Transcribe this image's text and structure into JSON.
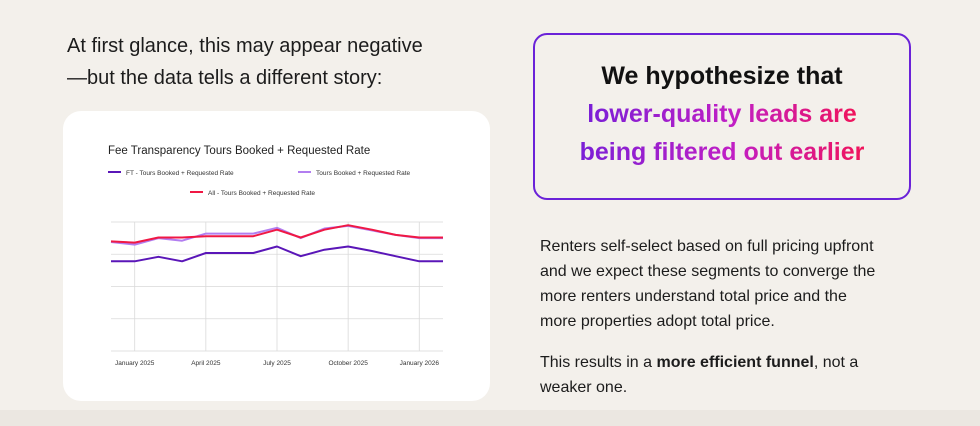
{
  "intro": {
    "line1": "At first glance, this may appear negative",
    "line2": "—but the data tells a different story:"
  },
  "hypothesis": {
    "line1": "We hypothesize that",
    "line2": "lower-quality leads are",
    "line3": "being filtered out earlier",
    "colors": {
      "start": "#7a1fd6",
      "mid": "#c21fc4",
      "end": "#f0135a",
      "border": "#6a22d8"
    }
  },
  "body": {
    "para1_lines": [
      "Renters self-select based on full pricing upfront",
      "and we expect these segments to converge the",
      "more renters understand total price and the",
      "more properties adopt total price."
    ],
    "para2_prefix": "This results in a ",
    "para2_bold": "more efficient funnel",
    "para2_suffix": ", not a",
    "para2_line2": "weaker one."
  },
  "chart_data": {
    "type": "line",
    "title": "Fee Transparency Tours Booked + Requested Rate",
    "xlabel": "",
    "ylabel": "",
    "grid": true,
    "legend_position": "top",
    "x_ticks": [
      "January 2025",
      "April 2025",
      "July 2025",
      "October 2025",
      "January 2026"
    ],
    "x_tick_index": [
      1,
      4,
      7,
      10,
      13
    ],
    "x": [
      "Dec 2024",
      "Jan 2025",
      "Feb 2025",
      "Mar 2025",
      "Apr 2025",
      "May 2025",
      "Jun 2025",
      "Jul 2025",
      "Aug 2025",
      "Sep 2025",
      "Oct 2025",
      "Nov 2025",
      "Dec 2025",
      "Jan 2026",
      "Feb 2026"
    ],
    "ylim": [
      0,
      1
    ],
    "series": [
      {
        "name": "FT - Tours Booked + Requested Rate",
        "color": "#5a16b8",
        "values": [
          0.695,
          0.695,
          0.73,
          0.695,
          0.76,
          0.76,
          0.76,
          0.81,
          0.735,
          0.785,
          0.81,
          0.775,
          0.735,
          0.695,
          0.695
        ]
      },
      {
        "name": "Tours Booked + Requested Rate",
        "color": "#b27ef0",
        "values": [
          0.845,
          0.825,
          0.875,
          0.855,
          0.91,
          0.91,
          0.91,
          0.955,
          0.875,
          0.95,
          0.97,
          0.935,
          0.9,
          0.875,
          0.875
        ]
      },
      {
        "name": "All - Tours Booked + Requested Rate",
        "color": "#f01844",
        "values": [
          0.85,
          0.84,
          0.88,
          0.88,
          0.89,
          0.89,
          0.89,
          0.94,
          0.88,
          0.94,
          0.975,
          0.94,
          0.9,
          0.88,
          0.88
        ]
      }
    ]
  }
}
